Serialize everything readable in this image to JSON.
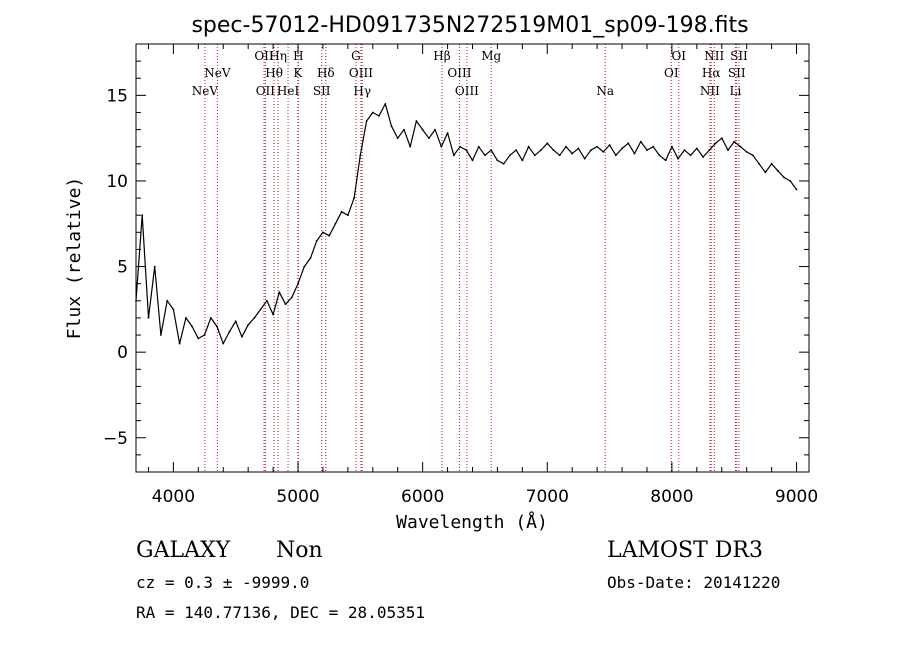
{
  "chart_data": {
    "type": "line",
    "title": "spec-57012-HD091735N272519M01_sp09-198.fits",
    "xlabel": "Wavelength (Å)",
    "ylabel": "Flux (relative)",
    "xlim": [
      3700,
      9100
    ],
    "ylim": [
      -7,
      18
    ],
    "xticks": [
      4000,
      5000,
      6000,
      7000,
      8000,
      9000
    ],
    "yticks": [
      -5,
      0,
      5,
      10,
      15
    ],
    "line_color": "#000000",
    "marker_color": "#b22222",
    "series": [
      {
        "name": "flux",
        "x": [
          3700,
          3750,
          3800,
          3850,
          3900,
          3950,
          4000,
          4050,
          4100,
          4150,
          4200,
          4250,
          4300,
          4350,
          4400,
          4450,
          4500,
          4550,
          4600,
          4650,
          4700,
          4750,
          4800,
          4850,
          4900,
          4950,
          5000,
          5050,
          5100,
          5150,
          5200,
          5250,
          5300,
          5350,
          5400,
          5450,
          5500,
          5550,
          5600,
          5650,
          5700,
          5750,
          5800,
          5850,
          5900,
          5950,
          6000,
          6050,
          6100,
          6150,
          6200,
          6250,
          6300,
          6350,
          6400,
          6450,
          6500,
          6550,
          6600,
          6650,
          6700,
          6750,
          6800,
          6850,
          6900,
          6950,
          7000,
          7050,
          7100,
          7150,
          7200,
          7250,
          7300,
          7350,
          7400,
          7450,
          7500,
          7550,
          7600,
          7650,
          7700,
          7750,
          7800,
          7850,
          7900,
          7950,
          8000,
          8050,
          8100,
          8150,
          8200,
          8250,
          8300,
          8350,
          8400,
          8450,
          8500,
          8550,
          8600,
          8650,
          8700,
          8750,
          8800,
          8850,
          8900,
          8950,
          9000
        ],
        "values": [
          3.0,
          8.0,
          2.0,
          5.0,
          1.0,
          3.0,
          2.5,
          0.5,
          2.0,
          1.5,
          0.8,
          1.0,
          2.0,
          1.5,
          0.5,
          1.2,
          1.8,
          0.9,
          1.6,
          2.0,
          2.5,
          3.0,
          2.2,
          3.5,
          2.8,
          3.2,
          4.0,
          5.0,
          5.5,
          6.5,
          7.0,
          6.8,
          7.5,
          8.2,
          8.0,
          9.0,
          11.5,
          13.5,
          14.0,
          13.8,
          14.5,
          13.2,
          12.5,
          13.0,
          12.0,
          13.5,
          13.0,
          12.5,
          13.0,
          12.0,
          12.8,
          11.5,
          12.0,
          11.8,
          11.2,
          12.0,
          11.5,
          11.8,
          11.2,
          11.0,
          11.5,
          11.8,
          11.2,
          12.0,
          11.5,
          11.8,
          12.2,
          11.8,
          11.5,
          12.0,
          11.6,
          11.9,
          11.3,
          11.8,
          12.0,
          11.7,
          12.1,
          11.5,
          11.9,
          12.2,
          11.6,
          12.3,
          11.8,
          12.0,
          11.5,
          11.2,
          12.0,
          11.3,
          11.8,
          11.5,
          11.9,
          11.4,
          11.8,
          12.2,
          12.5,
          11.8,
          12.3,
          12.0,
          11.7,
          11.5,
          11.0,
          10.5,
          11.0,
          10.6,
          10.2,
          10.0,
          9.5
        ]
      }
    ],
    "line_markers": [
      {
        "label": "NeV",
        "x": 4253,
        "row": 2
      },
      {
        "label": "NeV",
        "x": 4353,
        "row": 1
      },
      {
        "label": "OII",
        "x": 4727,
        "row": 0
      },
      {
        "label": "OII",
        "x": 4738,
        "row": 2
      },
      {
        "label": "Hη",
        "x": 4840,
        "row": 0
      },
      {
        "label": "Hθ",
        "x": 4808,
        "row": 1
      },
      {
        "label": "HeI",
        "x": 4920,
        "row": 2
      },
      {
        "label": "H",
        "x": 5003,
        "row": 0
      },
      {
        "label": "K",
        "x": 4999,
        "row": 1
      },
      {
        "label": "SII",
        "x": 5190,
        "row": 2
      },
      {
        "label": "Hδ",
        "x": 5223,
        "row": 1
      },
      {
        "label": "G",
        "x": 5465,
        "row": 0
      },
      {
        "label": "OIII",
        "x": 5505,
        "row": 1
      },
      {
        "label": "Hγ",
        "x": 5515,
        "row": 2
      },
      {
        "label": "Hβ",
        "x": 6155,
        "row": 0
      },
      {
        "label": "OIII",
        "x": 6295,
        "row": 1
      },
      {
        "label": "OIII",
        "x": 6355,
        "row": 2
      },
      {
        "label": "Mg",
        "x": 6550,
        "row": 0
      },
      {
        "label": "Na",
        "x": 7465,
        "row": 2
      },
      {
        "label": "OI",
        "x": 8055,
        "row": 0
      },
      {
        "label": "OI",
        "x": 7995,
        "row": 1
      },
      {
        "label": "NII",
        "x": 8340,
        "row": 0
      },
      {
        "label": "Hα",
        "x": 8315,
        "row": 1
      },
      {
        "label": "NII",
        "x": 8305,
        "row": 2
      },
      {
        "label": "SII",
        "x": 8538,
        "row": 0
      },
      {
        "label": "SII",
        "x": 8520,
        "row": 1
      },
      {
        "label": "Li",
        "x": 8510,
        "row": 2
      }
    ]
  },
  "footer": {
    "class_label": "GALAXY",
    "subclass_label": "Non",
    "survey": "LAMOST DR3",
    "cz": "cz = 0.3 ± -9999.0",
    "obs_date": "Obs-Date: 20141220",
    "radec": "RA = 140.77136, DEC =  28.05351"
  }
}
